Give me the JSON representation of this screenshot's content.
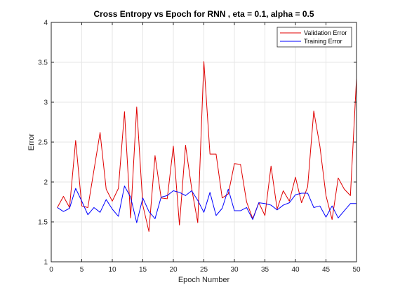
{
  "chart_data": {
    "type": "line",
    "title": "Cross Entropy vs Epoch for RNN , eta = 0.1, alpha = 0.5",
    "xlabel": "Epoch Number",
    "ylabel": "Error",
    "xlim": [
      0,
      50
    ],
    "ylim": [
      1,
      4
    ],
    "xticks": [
      0,
      5,
      10,
      15,
      20,
      25,
      30,
      35,
      40,
      45,
      50
    ],
    "yticks": [
      1,
      1.5,
      2,
      2.5,
      3,
      3.5,
      4
    ],
    "grid": true,
    "legend_position": "top-right",
    "x": [
      1,
      2,
      3,
      4,
      5,
      6,
      7,
      8,
      9,
      10,
      11,
      12,
      13,
      14,
      15,
      16,
      17,
      18,
      19,
      20,
      21,
      22,
      23,
      24,
      25,
      26,
      27,
      28,
      29,
      30,
      31,
      32,
      33,
      34,
      35,
      36,
      37,
      38,
      39,
      40,
      41,
      42,
      43,
      44,
      45,
      46,
      47,
      48,
      49,
      50
    ],
    "series": [
      {
        "name": "Validation Error",
        "color": "#e00000",
        "values": [
          1.68,
          1.82,
          1.68,
          2.52,
          1.7,
          1.68,
          2.15,
          2.62,
          1.91,
          1.76,
          1.92,
          2.88,
          1.55,
          2.94,
          1.71,
          1.38,
          2.33,
          1.8,
          1.79,
          2.45,
          1.46,
          2.46,
          1.92,
          1.49,
          3.51,
          2.35,
          2.35,
          1.8,
          1.85,
          2.23,
          2.22,
          1.75,
          1.54,
          1.74,
          1.58,
          2.2,
          1.66,
          1.89,
          1.76,
          2.06,
          1.74,
          1.94,
          2.89,
          2.45,
          1.83,
          1.53,
          2.05,
          1.91,
          1.83,
          3.3
        ]
      },
      {
        "name": "Training Error",
        "color": "#0000ff",
        "values": [
          1.68,
          1.63,
          1.67,
          1.92,
          1.76,
          1.59,
          1.68,
          1.62,
          1.78,
          1.66,
          1.57,
          1.95,
          1.81,
          1.49,
          1.8,
          1.63,
          1.54,
          1.81,
          1.83,
          1.89,
          1.87,
          1.83,
          1.89,
          1.77,
          1.62,
          1.87,
          1.58,
          1.67,
          1.91,
          1.64,
          1.64,
          1.68,
          1.53,
          1.74,
          1.73,
          1.71,
          1.65,
          1.71,
          1.74,
          1.84,
          1.86,
          1.86,
          1.68,
          1.7,
          1.56,
          1.7,
          1.55,
          1.64,
          1.73,
          1.73
        ]
      }
    ]
  }
}
